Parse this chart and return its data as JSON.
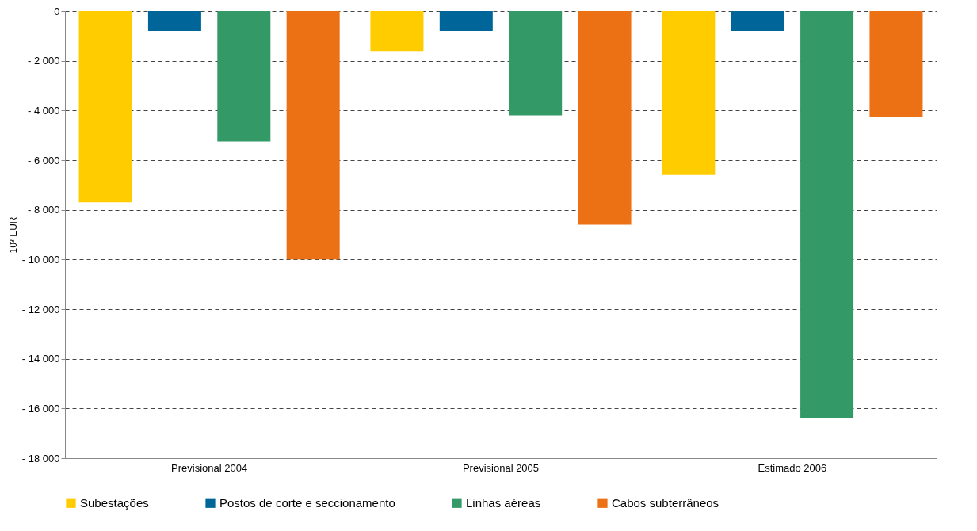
{
  "chart_data": {
    "type": "bar",
    "ylabel": "10³ EUR",
    "categories": [
      "Previsional 2004",
      "Previsional 2005",
      "Estimado 2006"
    ],
    "series": [
      {
        "name": "Subestações",
        "color": "#ffcc00",
        "values": [
          -7700,
          -1600,
          -6600
        ]
      },
      {
        "name": "Postos de corte e seccionamento",
        "color": "#006699",
        "values": [
          -800,
          -800,
          -800
        ]
      },
      {
        "name": "Linhas aéreas",
        "color": "#339966",
        "values": [
          -5250,
          -4200,
          -16400
        ]
      },
      {
        "name": "Cabos subterrâneos",
        "color": "#ec7014",
        "values": [
          -10000,
          -8600,
          -4250
        ]
      }
    ],
    "ylim": [
      -18000,
      0
    ],
    "yticks": [
      {
        "value": -18000,
        "label": "- 18 000"
      },
      {
        "value": -16000,
        "label": "- 16 000"
      },
      {
        "value": -14000,
        "label": "- 14 000"
      },
      {
        "value": -12000,
        "label": "- 12 000"
      },
      {
        "value": -10000,
        "label": "- 10 000"
      },
      {
        "value": -8000,
        "label": "- 8 000"
      },
      {
        "value": -6000,
        "label": "- 6 000"
      },
      {
        "value": -4000,
        "label": "- 4 000"
      },
      {
        "value": -2000,
        "label": "- 2 000"
      },
      0
    ],
    "grid": "y",
    "legend": "bottom"
  }
}
